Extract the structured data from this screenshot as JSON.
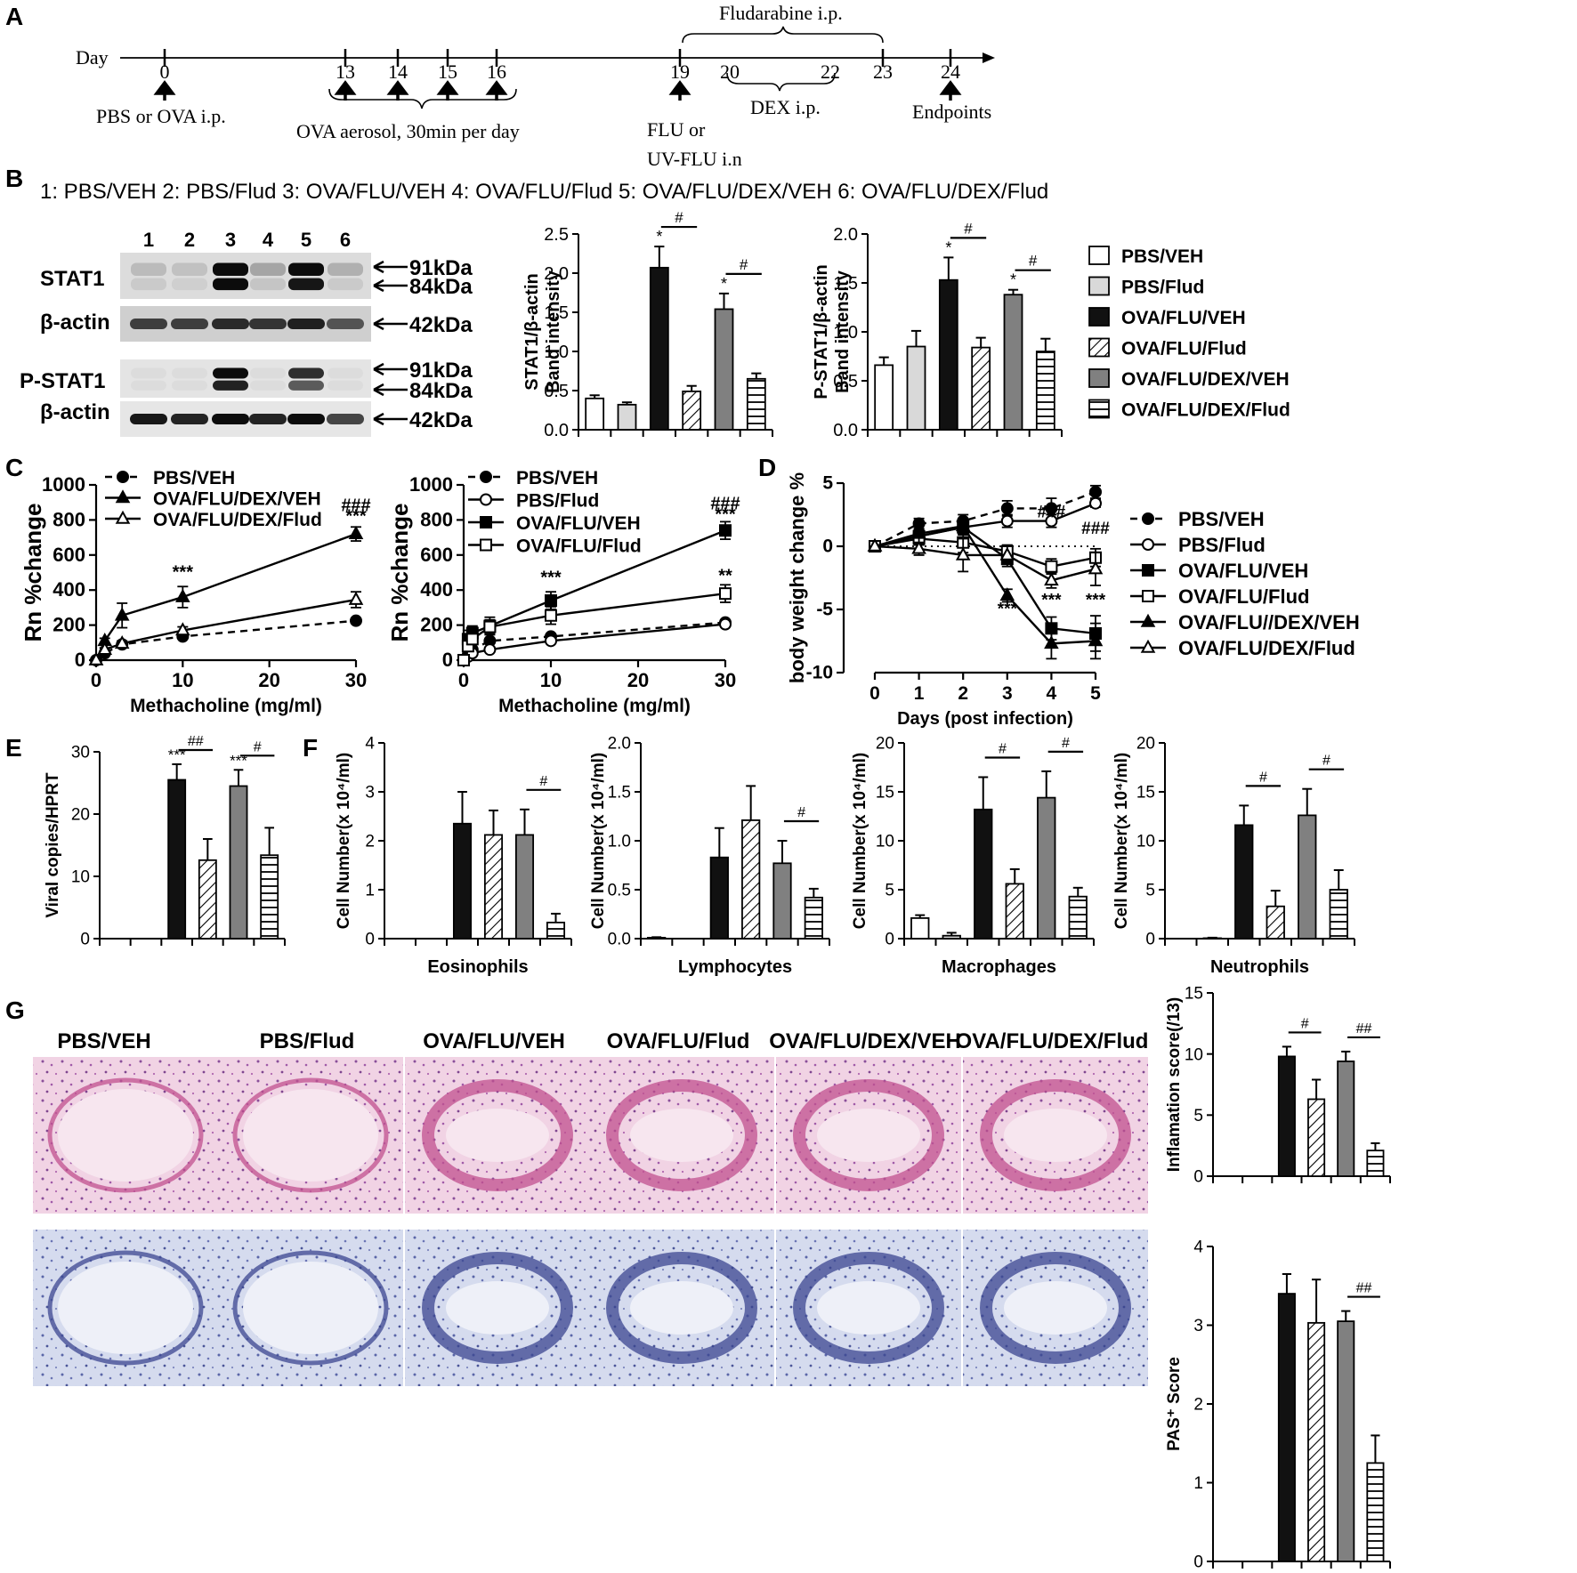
{
  "panels": {
    "A": "A",
    "B": "B",
    "C": "C",
    "D": "D",
    "E": "E",
    "F": "F",
    "G": "G"
  },
  "timeline": {
    "day_label": "Day",
    "days": [
      "0",
      "13",
      "14",
      "15",
      "16",
      "19",
      "20",
      "22",
      "23",
      "24"
    ],
    "fludarabine": "Fludarabine i.p.",
    "pbs_ova": "PBS or OVA i.p.",
    "aerosol": "OVA aerosol, 30min per day",
    "flu_line1": "FLU or",
    "flu_line2": "UV-FLU  i.n",
    "dex": "DEX i.p.",
    "endpoints": "Endpoints"
  },
  "groups_legend": "1: PBS/VEH  2: PBS/Flud  3: OVA/FLU/VEH  4: OVA/FLU/Flud  5: OVA/FLU/DEX/VEH  6: OVA/FLU/DEX/Flud",
  "blot": {
    "lanes": [
      "1",
      "2",
      "3",
      "4",
      "5",
      "6"
    ],
    "rows": [
      "STAT1",
      "β-actin",
      "P-STAT1",
      "β-actin"
    ],
    "markers": [
      "91kDa",
      "84kDa",
      "42kDa",
      "91kDa",
      "84kDa",
      "42kDa"
    ]
  },
  "legend_bars": [
    "PBS/VEH",
    "PBS/Flud",
    "OVA/FLU/VEH",
    "OVA/FLU/Flud",
    "OVA/FLU/DEX/VEH",
    "OVA/FLU/DEX/Flud"
  ],
  "legend_c1": [
    "PBS/VEH",
    "OVA/FLU/DEX/VEH",
    "OVA/FLU/DEX/Flud"
  ],
  "legend_c2": [
    "PBS/VEH",
    "PBS/Flud",
    "OVA/FLU/VEH",
    "OVA/FLU/Flud"
  ],
  "legend_d": [
    "PBS/VEH",
    "PBS/Flud",
    "OVA/FLU/VEH",
    "OVA/FLU/Flud",
    "OVA/FLU//DEX/VEH",
    "OVA/FLU/DEX/Flud"
  ],
  "histology": {
    "titles": [
      "PBS/VEH",
      "PBS/Flud",
      "OVA/FLU/VEH",
      "OVA/FLU/Flud",
      "OVA/FLU/DEX/VEH",
      "OVA/FLU/DEX/Flud"
    ]
  },
  "colors": {
    "white": "#ffffff",
    "lightgray": "#d9d9d9",
    "black": "#111111",
    "darkgray": "#808080",
    "he": "#e3a8c8",
    "pas": "#9aa8d2"
  },
  "chart_data": [
    {
      "id": "B1",
      "type": "bar",
      "ylabel": [
        "STAT1/β-actin",
        "Band intensity"
      ],
      "ylim": [
        0,
        2.5
      ],
      "ticks": [
        "0.0",
        "0.5",
        "1.0",
        "1.5",
        "2.0",
        "2.5"
      ],
      "values": [
        0.4,
        0.32,
        2.07,
        0.49,
        1.54,
        0.65
      ],
      "errors": [
        0.04,
        0.03,
        0.27,
        0.07,
        0.2,
        0.07
      ],
      "stars": {
        "2": "*",
        "4": "*"
      },
      "brackets": [
        {
          "from": 2,
          "to": 3,
          "label": "#"
        },
        {
          "from": 4,
          "to": 5,
          "label": "#"
        }
      ]
    },
    {
      "id": "B2",
      "type": "bar",
      "ylabel": [
        "P-STAT1/β-actin",
        "Band intensity"
      ],
      "ylim": [
        0,
        2.0
      ],
      "ticks": [
        "0.0",
        "0.5",
        "1.0",
        "1.5",
        "2.0"
      ],
      "values": [
        0.66,
        0.85,
        1.53,
        0.84,
        1.38,
        0.8
      ],
      "errors": [
        0.08,
        0.16,
        0.23,
        0.1,
        0.05,
        0.13
      ],
      "stars": {
        "2": "*",
        "4": "*"
      },
      "brackets": [
        {
          "from": 2,
          "to": 3,
          "label": "#"
        },
        {
          "from": 4,
          "to": 5,
          "label": "#"
        }
      ]
    },
    {
      "id": "C1",
      "type": "line",
      "ylabel": "Rn %change",
      "xlabel": "Methacholine (mg/ml)",
      "xlim": [
        0,
        30
      ],
      "ylim": [
        0,
        1000
      ],
      "xticks": [
        "0",
        "10",
        "20",
        "30"
      ],
      "yticks": [
        "0",
        "200",
        "400",
        "600",
        "800",
        "1000"
      ],
      "series": [
        {
          "name": "PBS/VEH",
          "marker": "circle",
          "fill": "black",
          "dashed": true,
          "x": [
            0,
            1,
            3,
            10,
            30
          ],
          "y": [
            0,
            40,
            90,
            135,
            225
          ],
          "err": [
            0,
            10,
            10,
            10,
            10
          ]
        },
        {
          "name": "OVA/FLU/DEX/VEH",
          "marker": "triangle",
          "fill": "black",
          "dashed": false,
          "x": [
            0,
            1,
            3,
            10,
            30
          ],
          "y": [
            0,
            110,
            255,
            360,
            720
          ],
          "err": [
            0,
            15,
            70,
            60,
            40
          ]
        },
        {
          "name": "OVA/FLU/DEX/Flud",
          "marker": "triangle",
          "fill": "white",
          "dashed": false,
          "x": [
            0,
            1,
            3,
            10,
            30
          ],
          "y": [
            0,
            60,
            95,
            170,
            345
          ],
          "err": [
            0,
            10,
            15,
            20,
            45
          ]
        }
      ],
      "annotations": [
        {
          "x": 10,
          "y": 470,
          "text": "***"
        },
        {
          "x": 30,
          "y": 790,
          "text": "***"
        },
        {
          "x": 30,
          "y": 850,
          "text": "###"
        }
      ]
    },
    {
      "id": "C2",
      "type": "line",
      "ylabel": "Rn %change",
      "xlabel": "Methacholine (mg/ml)",
      "xlim": [
        0,
        30
      ],
      "ylim": [
        0,
        1000
      ],
      "xticks": [
        "0",
        "10",
        "20",
        "30"
      ],
      "yticks": [
        "0",
        "200",
        "400",
        "600",
        "800",
        "1000"
      ],
      "series": [
        {
          "name": "PBS/VEH",
          "marker": "circle",
          "fill": "black",
          "dashed": true,
          "x": [
            0,
            0.5,
            1,
            3,
            10,
            30
          ],
          "y": [
            0,
            30,
            60,
            110,
            135,
            215
          ],
          "err": [
            0,
            10,
            10,
            10,
            15,
            10
          ]
        },
        {
          "name": "PBS/Flud",
          "marker": "circle",
          "fill": "white",
          "dashed": false,
          "x": [
            0,
            0.5,
            1,
            3,
            10,
            30
          ],
          "y": [
            0,
            20,
            40,
            60,
            110,
            205
          ],
          "err": [
            0,
            10,
            10,
            10,
            15,
            15
          ]
        },
        {
          "name": "OVA/FLU/VEH",
          "marker": "square",
          "fill": "black",
          "dashed": false,
          "x": [
            0,
            0.5,
            1,
            3,
            10,
            30
          ],
          "y": [
            0,
            120,
            155,
            195,
            340,
            740
          ],
          "err": [
            0,
            50,
            40,
            50,
            50,
            50
          ]
        },
        {
          "name": "OVA/FLU/Flud",
          "marker": "square",
          "fill": "white",
          "dashed": false,
          "x": [
            0,
            0.5,
            1,
            3,
            10,
            30
          ],
          "y": [
            0,
            80,
            120,
            190,
            255,
            380
          ],
          "err": [
            0,
            30,
            30,
            40,
            50,
            50
          ]
        }
      ],
      "annotations": [
        {
          "x": 10,
          "y": 440,
          "text": "***"
        },
        {
          "x": 30,
          "y": 450,
          "text": "**"
        },
        {
          "x": 30,
          "y": 800,
          "text": "***"
        },
        {
          "x": 30,
          "y": 860,
          "text": "###"
        }
      ]
    },
    {
      "id": "D",
      "type": "line",
      "ylabel": "body weight change %",
      "xlabel": "Days (post infection)",
      "xlim": [
        0,
        5
      ],
      "ylim": [
        -10,
        5
      ],
      "xticks": [
        "0",
        "1",
        "2",
        "3",
        "4",
        "5"
      ],
      "yticks": [
        "-10",
        "-5",
        "0",
        "5"
      ],
      "series": [
        {
          "name": "PBS/VEH",
          "marker": "circle",
          "fill": "black",
          "dashed": true,
          "x": [
            0,
            1,
            2,
            3,
            4,
            5
          ],
          "y": [
            0,
            1.8,
            2.0,
            3.0,
            3.0,
            4.3
          ],
          "err": [
            0,
            0.4,
            0.5,
            0.6,
            0.8,
            0.5
          ]
        },
        {
          "name": "PBS/Flud",
          "marker": "circle",
          "fill": "white",
          "dashed": false,
          "x": [
            0,
            1,
            2,
            3,
            4,
            5
          ],
          "y": [
            0,
            0.8,
            1.5,
            2.0,
            2.0,
            3.4
          ],
          "err": [
            0,
            0.4,
            0.5,
            0.5,
            0.5,
            0.3
          ]
        },
        {
          "name": "OVA/FLU/VEH",
          "marker": "square",
          "fill": "black",
          "dashed": false,
          "x": [
            0,
            1,
            2,
            3,
            4,
            5
          ],
          "y": [
            0,
            0.8,
            1.5,
            -1.0,
            -6.5,
            -6.9
          ],
          "err": [
            0,
            0.5,
            0.6,
            0.6,
            0.9,
            1.4
          ]
        },
        {
          "name": "OVA/FLU/Flud",
          "marker": "square",
          "fill": "white",
          "dashed": false,
          "x": [
            0,
            1,
            2,
            3,
            4,
            5
          ],
          "y": [
            0,
            0.6,
            0.3,
            -0.4,
            -1.6,
            -0.9
          ],
          "err": [
            0,
            0.5,
            0.8,
            0.5,
            0.6,
            0.7
          ]
        },
        {
          "name": "OVA/FLU//DEX/VEH",
          "marker": "triangle",
          "fill": "black",
          "dashed": false,
          "x": [
            0,
            1,
            2,
            3,
            4,
            5
          ],
          "y": [
            0,
            1.0,
            1.6,
            -3.9,
            -7.7,
            -7.5
          ],
          "err": [
            0,
            0.7,
            0.5,
            0.5,
            1.2,
            1.4
          ]
        },
        {
          "name": "OVA/FLU/DEX/Flud",
          "marker": "triangle",
          "fill": "white",
          "dashed": false,
          "x": [
            0,
            1,
            2,
            3,
            4,
            5
          ],
          "y": [
            0,
            -0.2,
            -0.7,
            -0.7,
            -2.7,
            -1.8
          ],
          "err": [
            0,
            0.5,
            1.3,
            0.7,
            0.6,
            1.3
          ]
        }
      ],
      "annotations": [
        {
          "x": 3,
          "y": -5.4,
          "text": "***"
        },
        {
          "x": 4,
          "y": -4.7,
          "text": "***"
        },
        {
          "x": 5,
          "y": -4.7,
          "text": "***"
        },
        {
          "x": 4,
          "y": 2.3,
          "text": "###"
        },
        {
          "x": 5,
          "y": 1.0,
          "text": "###"
        }
      ]
    },
    {
      "id": "E",
      "type": "bar",
      "ylabel": [
        "Viral copies/HPRT"
      ],
      "ylim": [
        0,
        30
      ],
      "ticks": [
        "0",
        "10",
        "20",
        "30"
      ],
      "values": [
        0,
        0,
        25.5,
        12.6,
        24.5,
        13.4
      ],
      "errors": [
        0,
        0,
        2.5,
        3.4,
        2.6,
        4.4
      ],
      "stars": {
        "2": "***",
        "4": "***"
      },
      "brackets": [
        {
          "from": 2,
          "to": 3,
          "label": "##"
        },
        {
          "from": 4,
          "to": 5,
          "label": "#"
        }
      ]
    },
    {
      "id": "F1",
      "type": "bar",
      "ylabel": [
        "Cell Number(x 10⁴/ml)"
      ],
      "xlabel": "Eosinophils",
      "ylim": [
        0,
        4
      ],
      "ticks": [
        "0",
        "1",
        "2",
        "3",
        "4"
      ],
      "values": [
        0,
        0,
        2.35,
        2.12,
        2.12,
        0.33
      ],
      "errors": [
        0,
        0,
        0.65,
        0.5,
        0.52,
        0.18
      ],
      "stars": {},
      "brackets": [
        {
          "from": 4,
          "to": 5,
          "label": "#"
        }
      ]
    },
    {
      "id": "F2",
      "type": "bar",
      "ylabel": [
        "Cell Number(x 10⁴/ml)"
      ],
      "xlabel": "Lymphocytes",
      "ylim": [
        0,
        2.0
      ],
      "ticks": [
        "0.0",
        "0.5",
        "1.0",
        "1.5",
        "2.0"
      ],
      "values": [
        0.01,
        0,
        0.83,
        1.21,
        0.77,
        0.42
      ],
      "errors": [
        0.005,
        0,
        0.3,
        0.35,
        0.23,
        0.09
      ],
      "stars": {},
      "brackets": [
        {
          "from": 4,
          "to": 5,
          "label": "#"
        }
      ]
    },
    {
      "id": "F3",
      "type": "bar",
      "ylabel": [
        "Cell Number(x 10⁴/ml)"
      ],
      "xlabel": "Macrophages",
      "ylim": [
        0,
        20
      ],
      "ticks": [
        "0",
        "5",
        "10",
        "15",
        "20"
      ],
      "values": [
        2.1,
        0.3,
        13.2,
        5.6,
        14.4,
        4.3
      ],
      "errors": [
        0.3,
        0.3,
        3.3,
        1.5,
        2.7,
        0.9
      ],
      "stars": {},
      "brackets": [
        {
          "from": 2,
          "to": 3,
          "label": "#"
        },
        {
          "from": 4,
          "to": 5,
          "label": "#"
        }
      ]
    },
    {
      "id": "F4",
      "type": "bar",
      "ylabel": [
        "Cell Number(x 10⁴/ml)"
      ],
      "xlabel": "Neutrophils",
      "ylim": [
        0,
        20
      ],
      "ticks": [
        "0",
        "5",
        "10",
        "15",
        "20"
      ],
      "values": [
        0,
        0.05,
        11.6,
        3.3,
        12.6,
        5.0
      ],
      "errors": [
        0,
        0.05,
        2.0,
        1.6,
        2.7,
        2.0
      ],
      "stars": {},
      "brackets": [
        {
          "from": 2,
          "to": 3,
          "label": "#"
        },
        {
          "from": 4,
          "to": 5,
          "label": "#"
        }
      ]
    },
    {
      "id": "G1",
      "type": "bar",
      "ylabel": [
        "Inflamation score(/13)"
      ],
      "ylim": [
        0,
        15
      ],
      "ticks": [
        "0",
        "5",
        "10",
        "15"
      ],
      "values": [
        0,
        0,
        9.8,
        6.3,
        9.4,
        2.1
      ],
      "errors": [
        0,
        0,
        0.8,
        1.6,
        0.8,
        0.6
      ],
      "stars": {},
      "brackets": [
        {
          "from": 2,
          "to": 3,
          "label": "#"
        },
        {
          "from": 4,
          "to": 5,
          "label": "##"
        }
      ]
    },
    {
      "id": "G2",
      "type": "bar",
      "ylabel": [
        "PAS⁺ Score"
      ],
      "ylim": [
        0,
        4
      ],
      "ticks": [
        "0",
        "1",
        "2",
        "3",
        "4"
      ],
      "values": [
        0,
        0,
        3.4,
        3.03,
        3.05,
        1.25
      ],
      "errors": [
        0,
        0,
        0.25,
        0.55,
        0.13,
        0.35
      ],
      "stars": {},
      "brackets": [
        {
          "from": 4,
          "to": 5,
          "label": "##"
        }
      ]
    }
  ]
}
